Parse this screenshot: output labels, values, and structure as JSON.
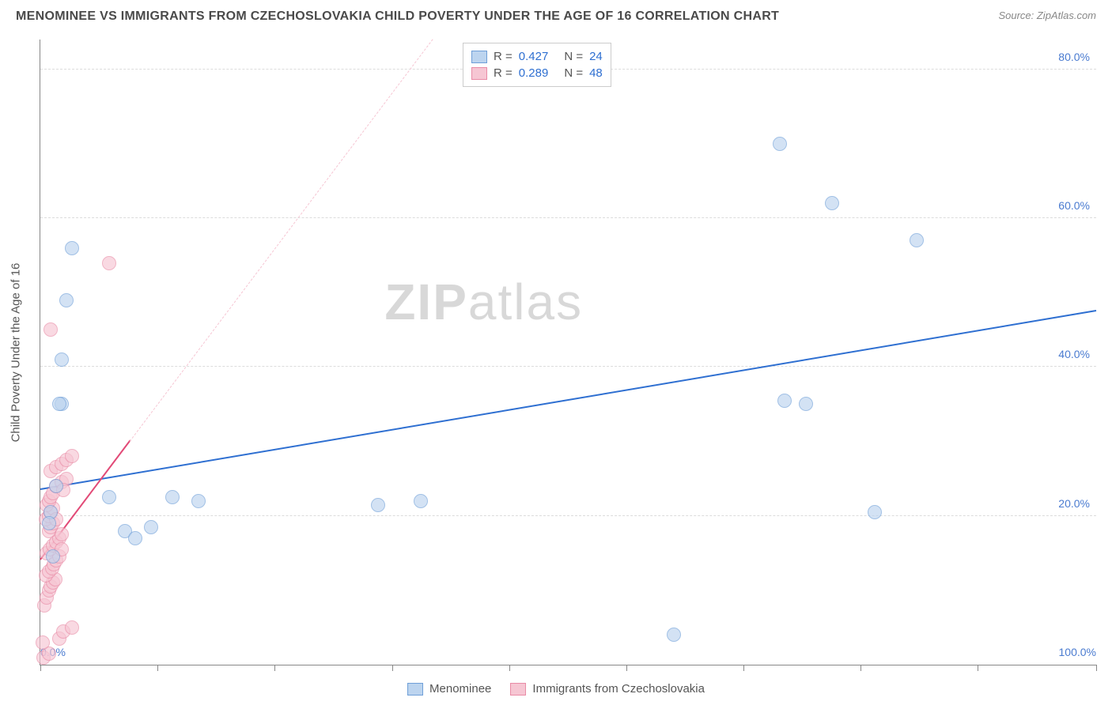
{
  "title": "MENOMINEE VS IMMIGRANTS FROM CZECHOSLOVAKIA CHILD POVERTY UNDER THE AGE OF 16 CORRELATION CHART",
  "source": "Source: ZipAtlas.com",
  "ylabel": "Child Poverty Under the Age of 16",
  "watermark_zip": "ZIP",
  "watermark_atlas": "atlas",
  "chart": {
    "type": "scatter",
    "xlim": [
      0,
      100
    ],
    "ylim": [
      0,
      84
    ],
    "y_ticks": [
      20,
      40,
      60,
      80
    ],
    "y_tick_labels": [
      "20.0%",
      "40.0%",
      "60.0%",
      "80.0%"
    ],
    "x_tick_labels": {
      "left": "0.0%",
      "right": "100.0%"
    },
    "x_minor_ticks": [
      0,
      11.1,
      22.2,
      33.3,
      44.4,
      55.5,
      66.6,
      77.7,
      88.8,
      100
    ],
    "grid_color": "#dcdcdc",
    "background_color": "#ffffff",
    "axis_color": "#888888",
    "series": [
      {
        "name": "Menominee",
        "label": "Menominee",
        "fill": "#bcd4ef",
        "stroke": "#6f9fd8",
        "trend_color": "#2e6fd1",
        "trend_dash_color": "#bcd4ef",
        "trend": {
          "x1": 0,
          "y1": 23.5,
          "x2": 100,
          "y2": 47.5
        },
        "R": "0.427",
        "N": "24",
        "points": [
          [
            1.2,
            14.5
          ],
          [
            1.0,
            20.5
          ],
          [
            1.5,
            24.0
          ],
          [
            0.8,
            19.0
          ],
          [
            3.0,
            56.0
          ],
          [
            2.5,
            49.0
          ],
          [
            2.0,
            41.0
          ],
          [
            2.0,
            35.0
          ],
          [
            1.8,
            35.0
          ],
          [
            6.5,
            22.5
          ],
          [
            8.0,
            18.0
          ],
          [
            9.0,
            17.0
          ],
          [
            10.5,
            18.5
          ],
          [
            12.5,
            22.5
          ],
          [
            15.0,
            22.0
          ],
          [
            32.0,
            21.5
          ],
          [
            36.0,
            22.0
          ],
          [
            60.0,
            4.0
          ],
          [
            70.0,
            70.0
          ],
          [
            75.0,
            62.0
          ],
          [
            83.0,
            57.0
          ],
          [
            70.5,
            35.5
          ],
          [
            72.5,
            35.0
          ],
          [
            79.0,
            20.5
          ]
        ]
      },
      {
        "name": "Immigrants from Czechoslovakia",
        "label": "Immigrants from Czechoslovakia",
        "fill": "#f6c6d3",
        "stroke": "#e98ba6",
        "trend_color": "#e24a77",
        "trend_dash_color": "#f6c6d3",
        "trend": {
          "x1": 0,
          "y1": 14.0,
          "x2": 8.5,
          "y2": 30.0
        },
        "R": "0.289",
        "N": "48",
        "points": [
          [
            0.3,
            1.0
          ],
          [
            0.8,
            1.5
          ],
          [
            0.2,
            3.0
          ],
          [
            1.8,
            3.5
          ],
          [
            2.2,
            4.5
          ],
          [
            3.0,
            5.0
          ],
          [
            0.4,
            8.0
          ],
          [
            0.6,
            9.0
          ],
          [
            0.8,
            10.0
          ],
          [
            1.0,
            10.5
          ],
          [
            1.2,
            11.0
          ],
          [
            1.4,
            11.5
          ],
          [
            0.5,
            12.0
          ],
          [
            0.8,
            12.5
          ],
          [
            1.1,
            13.0
          ],
          [
            1.3,
            13.5
          ],
          [
            1.5,
            14.0
          ],
          [
            1.8,
            14.5
          ],
          [
            0.6,
            15.0
          ],
          [
            0.9,
            15.5
          ],
          [
            1.2,
            16.0
          ],
          [
            1.5,
            16.5
          ],
          [
            1.8,
            17.0
          ],
          [
            2.0,
            17.5
          ],
          [
            0.8,
            18.0
          ],
          [
            1.0,
            18.5
          ],
          [
            1.2,
            19.0
          ],
          [
            0.5,
            19.5
          ],
          [
            0.8,
            20.0
          ],
          [
            1.0,
            20.5
          ],
          [
            1.2,
            21.0
          ],
          [
            0.6,
            21.5
          ],
          [
            0.8,
            22.0
          ],
          [
            1.0,
            22.5
          ],
          [
            1.2,
            23.0
          ],
          [
            1.5,
            24.0
          ],
          [
            2.0,
            24.5
          ],
          [
            2.5,
            25.0
          ],
          [
            1.0,
            26.0
          ],
          [
            1.5,
            26.5
          ],
          [
            2.0,
            27.0
          ],
          [
            2.5,
            27.5
          ],
          [
            3.0,
            28.0
          ],
          [
            2.2,
            23.5
          ],
          [
            1.0,
            45.0
          ],
          [
            6.5,
            54.0
          ],
          [
            1.5,
            19.5
          ],
          [
            2.0,
            15.5
          ]
        ]
      }
    ],
    "legend_top": {
      "R_label": "R =",
      "N_label": "N ="
    }
  },
  "typography": {
    "title_fontsize": 16,
    "label_fontsize": 15,
    "tick_fontsize": 14,
    "tick_color": "#4a7bd0"
  }
}
